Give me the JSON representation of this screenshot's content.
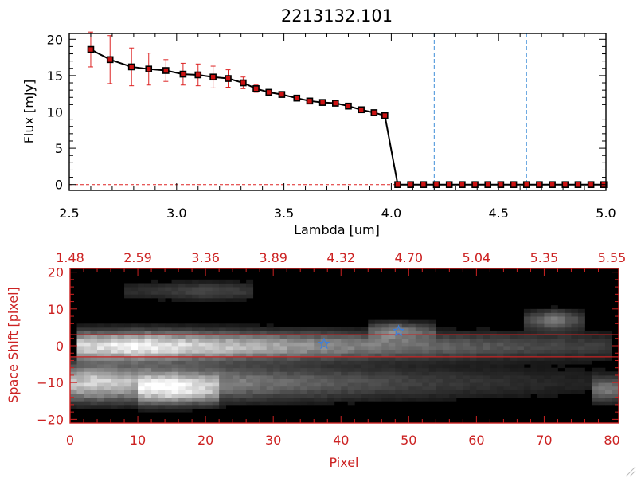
{
  "colors": {
    "axis_black": "#000000",
    "axis_red": "#cc2222",
    "series_line": "#000000",
    "marker_fill": "#cc1111",
    "errorbar": "#dd2222",
    "dashed_line": "#3f8fd8",
    "star": "#3f7fd8",
    "image_bg": "#000000"
  },
  "chart_data": [
    {
      "type": "line",
      "title": "2213132.101",
      "xlabel": "Lambda [um]",
      "ylabel": "Flux [mJy]",
      "xlim": [
        2.5,
        5.0
      ],
      "ylim": [
        -0.8,
        20.8
      ],
      "xticks": [
        2.5,
        3.0,
        3.5,
        4.0,
        4.5,
        5.0
      ],
      "xtick_labels": [
        "2.5",
        "3.0",
        "3.5",
        "4.0",
        "4.5",
        "5.0"
      ],
      "yticks": [
        0,
        5,
        10,
        15,
        20
      ],
      "ytick_labels": [
        "0",
        "5",
        "10",
        "15",
        "20"
      ],
      "vlines": [
        4.2,
        4.63
      ],
      "zero_line_dashed": true,
      "series": [
        {
          "name": "flux",
          "x": [
            2.6,
            2.69,
            2.79,
            2.87,
            2.95,
            3.03,
            3.1,
            3.17,
            3.24,
            3.31,
            3.37,
            3.43,
            3.49,
            3.56,
            3.62,
            3.68,
            3.74,
            3.8,
            3.86,
            3.92,
            3.97,
            4.03,
            4.09,
            4.15,
            4.21,
            4.27,
            4.33,
            4.39,
            4.45,
            4.51,
            4.57,
            4.63,
            4.69,
            4.75,
            4.81,
            4.87,
            4.93,
            4.99
          ],
          "y": [
            18.6,
            17.2,
            16.2,
            15.9,
            15.7,
            15.2,
            15.1,
            14.8,
            14.6,
            14.0,
            13.2,
            12.7,
            12.4,
            11.9,
            11.5,
            11.3,
            11.2,
            10.8,
            10.3,
            9.9,
            9.5,
            0,
            0,
            0,
            0,
            0,
            0,
            0,
            0,
            0,
            0,
            0,
            0,
            0,
            0,
            0,
            0,
            0
          ],
          "yerr": [
            2.4,
            3.3,
            2.6,
            2.2,
            1.5,
            1.5,
            1.5,
            1.5,
            1.2,
            0.8,
            0.5,
            0.3,
            0.3,
            0.3,
            0.3,
            0.3,
            0.3,
            0.3,
            0.3,
            0.3,
            0.3,
            0,
            0,
            0,
            0,
            0,
            0,
            0,
            0,
            0,
            0,
            0,
            0,
            0,
            0,
            0,
            0,
            0
          ]
        }
      ]
    },
    {
      "type": "heatmap",
      "title": "",
      "xlabel": "Pixel",
      "ylabel": "Space Shift [pixel]",
      "xlim": [
        0,
        81
      ],
      "ylim": [
        -21,
        21
      ],
      "xticks": [
        0,
        10,
        20,
        30,
        40,
        50,
        60,
        70,
        80
      ],
      "xtick_labels": [
        "0",
        "10",
        "20",
        "30",
        "40",
        "50",
        "60",
        "70",
        "80"
      ],
      "yticks": [
        -20,
        -10,
        0,
        10,
        20
      ],
      "ytick_labels": [
        "−20",
        "−10",
        "0",
        "10",
        "20"
      ],
      "top_axis_ticks": [
        0,
        10,
        20,
        30,
        40,
        50,
        60,
        70,
        80
      ],
      "top_axis_labels": [
        "1.48",
        "2.59",
        "3.36",
        "3.89",
        "4.32",
        "4.70",
        "5.04",
        "5.35",
        "5.55"
      ],
      "hlines": [
        3,
        -3
      ],
      "stars": [
        {
          "x": 37.5,
          "y": 0.5
        },
        {
          "x": 48.5,
          "y": 4.0
        }
      ],
      "sources": [
        {
          "x_start": 1,
          "x_end": 80,
          "y": 0,
          "y_sigma": 2.5,
          "peak_x": 10,
          "peak": 1.0,
          "falloff": 0.025
        },
        {
          "x_start": 0,
          "x_end": 81,
          "y": -10,
          "y_sigma": 3.2,
          "peak_x": 4,
          "peak": 0.8,
          "falloff": 0.03
        },
        {
          "x_start": 10,
          "x_end": 22,
          "y": -12,
          "y_sigma": 2.4,
          "peak_x": 15,
          "peak": 0.55,
          "falloff": 0.08
        },
        {
          "x_start": 67,
          "x_end": 76,
          "y": 7,
          "y_sigma": 1.8,
          "peak_x": 71.5,
          "peak": 0.45,
          "falloff": 0.2
        },
        {
          "x_start": 77,
          "x_end": 81,
          "y": -12,
          "y_sigma": 2.0,
          "peak_x": 79,
          "peak": 0.4,
          "falloff": 0.15
        },
        {
          "x_start": 44,
          "x_end": 54,
          "y": 4,
          "y_sigma": 1.6,
          "peak_x": 48,
          "peak": 0.4,
          "falloff": 0.15
        },
        {
          "x_start": 8,
          "x_end": 27,
          "y": 15,
          "y_sigma": 1.8,
          "peak_x": 20,
          "peak": 0.22,
          "falloff": 0.05
        }
      ]
    }
  ]
}
